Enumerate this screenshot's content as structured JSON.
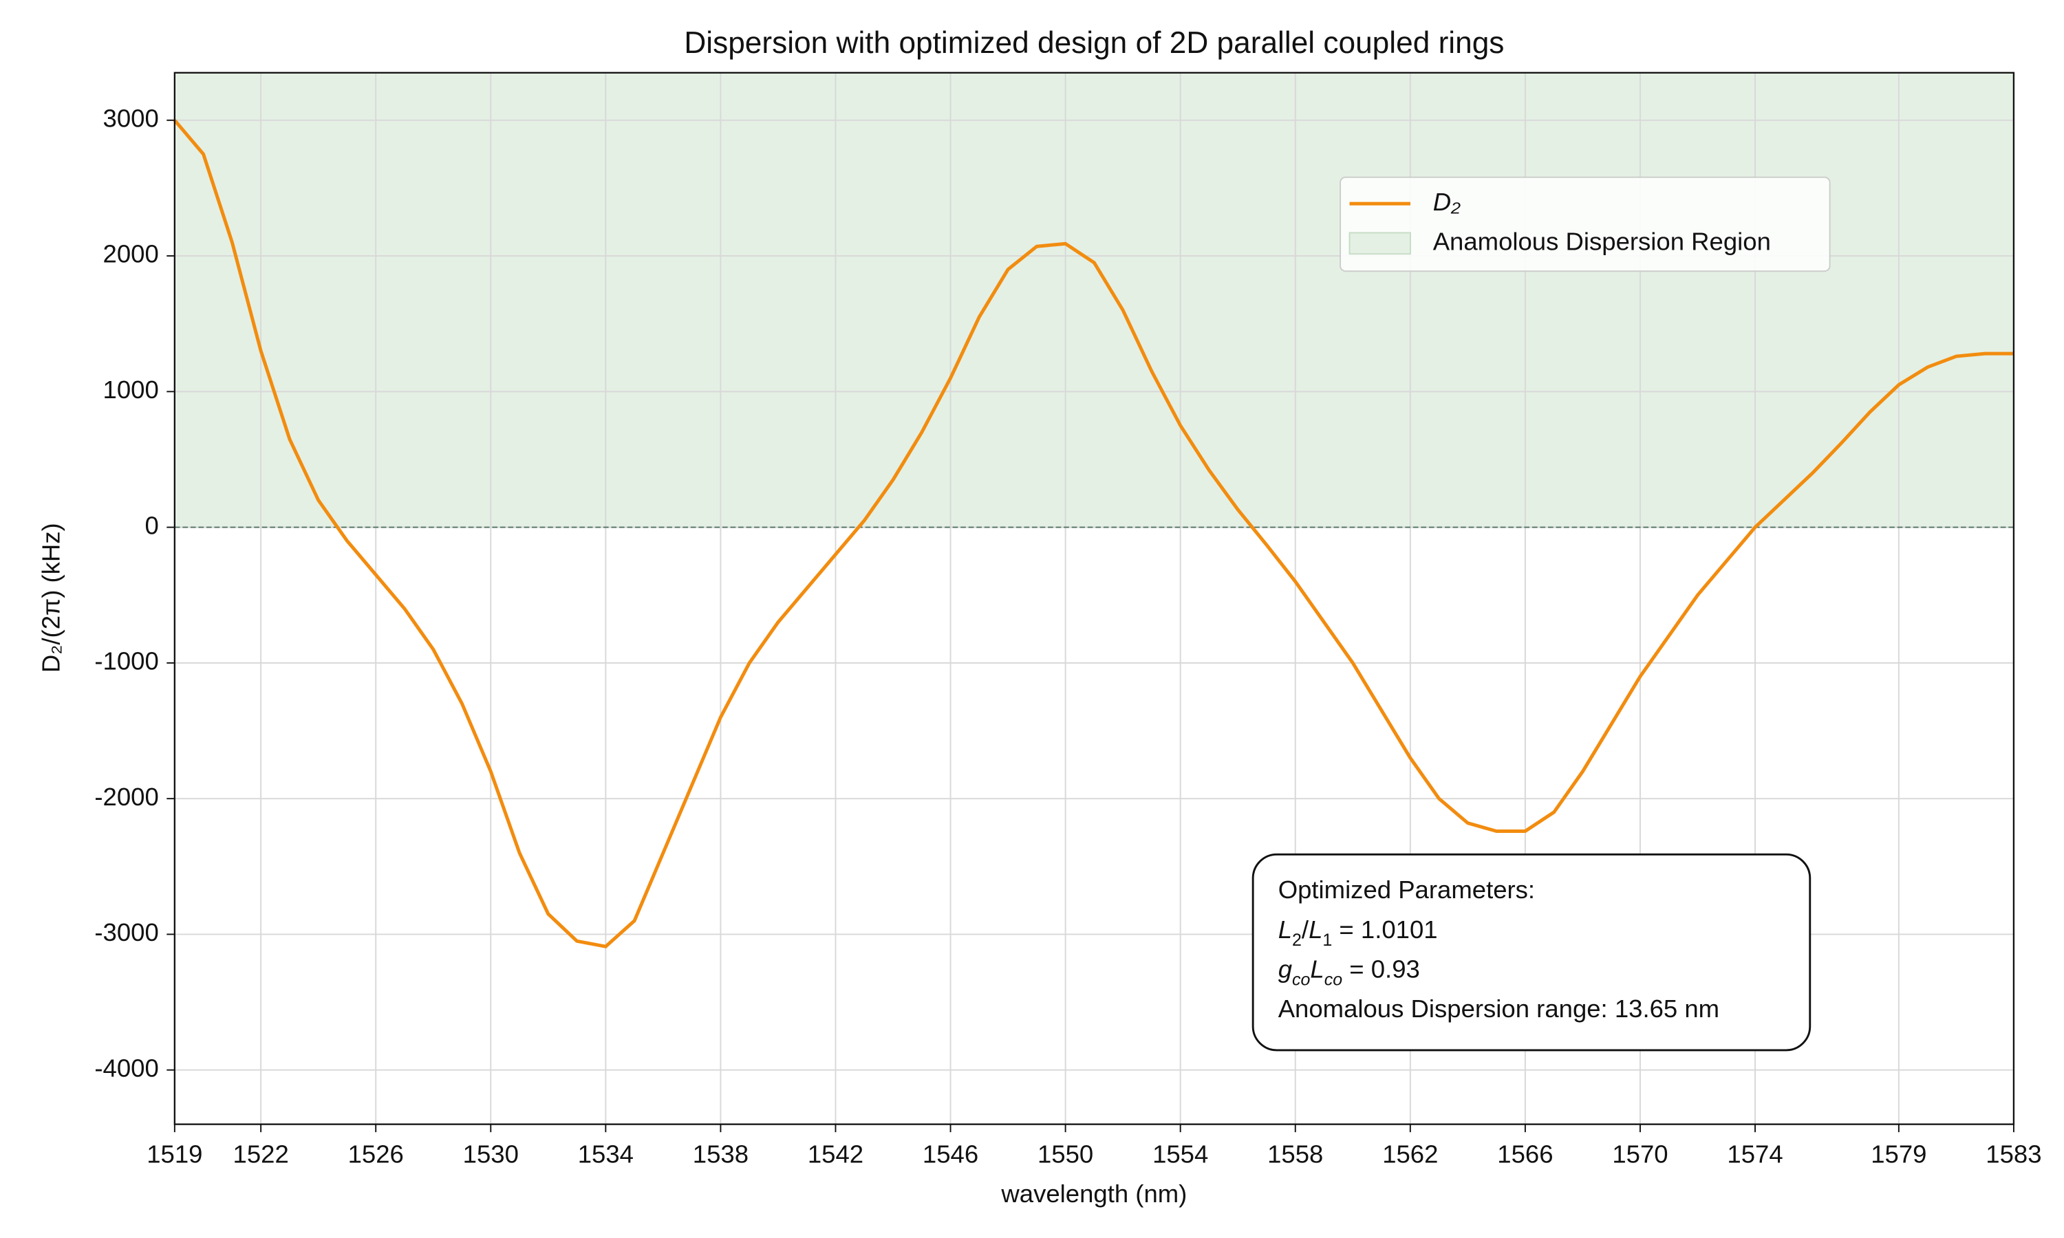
{
  "chart_data": {
    "type": "line",
    "title": "Dispersion with optimized design of 2D parallel coupled rings",
    "xlabel": "wavelength (nm)",
    "ylabel": "D₂/(2π) (kHz)",
    "xlim": [
      1519,
      1583
    ],
    "ylim": [
      -4400,
      3350
    ],
    "xticks": [
      1519,
      1522,
      1526,
      1530,
      1534,
      1538,
      1542,
      1546,
      1550,
      1554,
      1558,
      1562,
      1566,
      1570,
      1574,
      1579,
      1583
    ],
    "yticks": [
      -4000,
      -3000,
      -2000,
      -1000,
      0,
      1000,
      2000,
      3000
    ],
    "grid": true,
    "x": [
      1519,
      1520,
      1521,
      1522,
      1523,
      1524,
      1525,
      1526,
      1527,
      1528,
      1529,
      1530,
      1531,
      1532,
      1533,
      1534,
      1535,
      1536,
      1537,
      1538,
      1539,
      1540,
      1541,
      1542,
      1543,
      1544,
      1545,
      1546,
      1547,
      1548,
      1549,
      1550,
      1551,
      1552,
      1553,
      1554,
      1555,
      1556,
      1557,
      1558,
      1559,
      1560,
      1561,
      1562,
      1563,
      1564,
      1565,
      1566,
      1567,
      1568,
      1569,
      1570,
      1571,
      1572,
      1573,
      1574,
      1575,
      1576,
      1577,
      1578,
      1579,
      1580,
      1581,
      1582,
      1583
    ],
    "series": [
      {
        "name": "D₂",
        "color": "#f28c0f",
        "values": [
          3000,
          2750,
          2100,
          1300,
          650,
          200,
          -100,
          -350,
          -600,
          -900,
          -1300,
          -1800,
          -2400,
          -2850,
          -3050,
          -3090,
          -2900,
          -2400,
          -1900,
          -1400,
          -1000,
          -700,
          -450,
          -200,
          50,
          350,
          700,
          1100,
          1550,
          1900,
          2070,
          2090,
          1950,
          1600,
          1150,
          750,
          420,
          130,
          -130,
          -400,
          -700,
          -1000,
          -1350,
          -1700,
          -2000,
          -2180,
          -2240,
          -2240,
          -2100,
          -1800,
          -1450,
          -1100,
          -800,
          -500,
          -250,
          0,
          200,
          400,
          620,
          850,
          1050,
          1180,
          1260,
          1280,
          1280
        ]
      }
    ],
    "shaded_region": {
      "name": "Anamolous Dispersion Region",
      "color": "#e4f0e4",
      "from": 0
    },
    "annotation": [
      [
        {
          "text": "Optimized Parameters:"
        }
      ],
      [
        {
          "text": "L",
          "italic": true
        },
        {
          "text": "2",
          "sub": true
        },
        {
          "text": "/"
        },
        {
          "text": "L",
          "italic": true
        },
        {
          "text": "1",
          "sub": true
        },
        {
          "text": " = 1.0101"
        }
      ],
      [
        {
          "text": "g",
          "italic": true
        },
        {
          "text": "co",
          "sub": true,
          "italic": true
        },
        {
          "text": "L",
          "italic": true
        },
        {
          "text": "co",
          "sub": true,
          "italic": true
        },
        {
          "text": " = 0.93"
        }
      ],
      [
        {
          "text": "Anomalous Dispersion range: 13.65 nm"
        }
      ]
    ],
    "legend": "upper right"
  }
}
